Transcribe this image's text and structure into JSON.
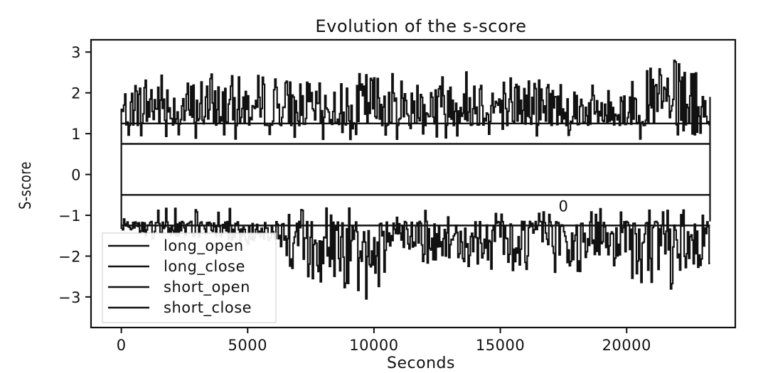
{
  "chart_data": {
    "type": "line",
    "title": "Evolution of the s-score",
    "xlabel": "Seconds",
    "ylabel": "S-score",
    "xlim": [
      -1200,
      24300
    ],
    "ylim": [
      -3.75,
      3.3
    ],
    "xticks": [
      0,
      5000,
      10000,
      15000,
      20000
    ],
    "xtick_labels": [
      "0",
      "5000",
      "10000",
      "15000",
      "20000"
    ],
    "yticks": [
      3,
      2,
      1,
      0,
      -1,
      -2,
      -3
    ],
    "ytick_labels": [
      "3",
      "2",
      "1",
      "0",
      "−1",
      "−2",
      "−3"
    ],
    "grid": false,
    "legend_position": "bottom-left",
    "series": [
      {
        "name": "long_open",
        "color": "#111111",
        "x": [
          0,
          23300
        ],
        "values": [
          -1.25,
          -1.25
        ]
      },
      {
        "name": "long_close",
        "color": "#111111",
        "x": [
          0,
          23300
        ],
        "values": [
          -0.5,
          -0.5
        ]
      },
      {
        "name": "short_open",
        "color": "#111111",
        "x": [
          0,
          23300
        ],
        "values": [
          1.25,
          1.25
        ]
      },
      {
        "name": "short_close",
        "color": "#111111",
        "x": [
          0,
          23300
        ],
        "values": [
          0.75,
          0.75
        ]
      }
    ],
    "s_score_series": {
      "color": "#111111",
      "x": [
        0,
        1200,
        2400,
        3600,
        4800,
        6000,
        7200,
        8400,
        9600,
        10800,
        12000,
        13200,
        14400,
        15600,
        16800,
        18000,
        19200,
        20400,
        21600,
        22800,
        23300
      ],
      "values": [
        2.1,
        2.7,
        2.3,
        2.5,
        2.4,
        2.5,
        2.3,
        2.2,
        2.6,
        2.5,
        2.5,
        2.6,
        2.6,
        2.5,
        2.5,
        2.3,
        2.1,
        2.4,
        2.9,
        2.5,
        1.9
      ],
      "lower_values": [
        -1.4,
        -1.6,
        -1.5,
        -1.6,
        -1.7,
        -2.0,
        -2.5,
        -3.1,
        -3.45,
        -2.0,
        -2.2,
        -2.3,
        -2.3,
        -2.5,
        -2.4,
        -2.6,
        -2.2,
        -2.7,
        -2.9,
        -2.4,
        -2.2
      ]
    },
    "annotations": [
      "0"
    ]
  }
}
